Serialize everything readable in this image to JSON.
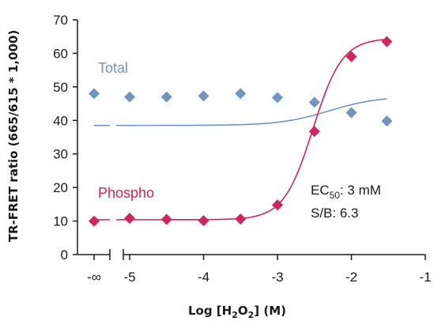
{
  "chart_data": {
    "type": "scatter",
    "ylabel": "TR-FRET ratio (665/615 * 1,000)",
    "xlabel": {
      "prefix": "Log [H",
      "sub1": "2",
      "mid": "O",
      "sub2": "2",
      "suffix": "] (M)"
    },
    "ylim": [
      0,
      70
    ],
    "y_ticks": [
      "0",
      "10",
      "20",
      "30",
      "40",
      "50",
      "60",
      "70"
    ],
    "xlim": [
      -5.3,
      -1
    ],
    "x_ticks": [
      {
        "value": -5,
        "label": "-5"
      },
      {
        "value": -4,
        "label": "-4"
      },
      {
        "value": -3,
        "label": "-3"
      },
      {
        "value": -2,
        "label": "-2"
      },
      {
        "value": -1,
        "label": "-1"
      }
    ],
    "x_zero_label": "-∞",
    "x_axis_break": true,
    "grid": false,
    "series": [
      {
        "name": "Total",
        "color": "#6f95bf",
        "zero_dose_value": 48,
        "x": [
          -5,
          -4.5,
          -4,
          -3.5,
          -3,
          -2.5,
          -2,
          -1.52
        ],
        "y": [
          47,
          47,
          47.3,
          48,
          46.8,
          45.4,
          42.3,
          39.8
        ],
        "fit": {
          "bottom": 38.5,
          "top": 47.2,
          "log_ec50": -2.3,
          "hill": 1.3
        }
      },
      {
        "name": "Phospho",
        "color": "#d0245a",
        "zero_dose_value": 10,
        "x": [
          -5,
          -4.5,
          -4,
          -3.5,
          -3,
          -2.5,
          -2,
          -1.52
        ],
        "y": [
          10.8,
          10.5,
          10.1,
          10.6,
          14.8,
          36.7,
          59,
          63.5
        ],
        "fit": {
          "bottom": 10.4,
          "top": 64.5,
          "log_ec50": -2.52,
          "hill": 2.2
        }
      }
    ],
    "annotations": {
      "ec50_prefix": "EC",
      "ec50_sub": "50",
      "ec50_value": ": 3 mM",
      "sb": "S/B: 6.3"
    }
  }
}
